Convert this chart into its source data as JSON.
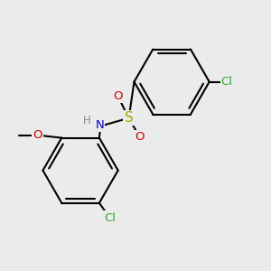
{
  "background_color": "#EBEBEB",
  "bond_color": "#000000",
  "bond_width": 1.5,
  "atom_colors": {
    "S": "#AAAA00",
    "N": "#0000CC",
    "O": "#CC0000",
    "Cl": "#33AA33",
    "H": "#888888",
    "C": "#000000"
  },
  "figsize": [
    3.0,
    3.0
  ],
  "dpi": 100
}
